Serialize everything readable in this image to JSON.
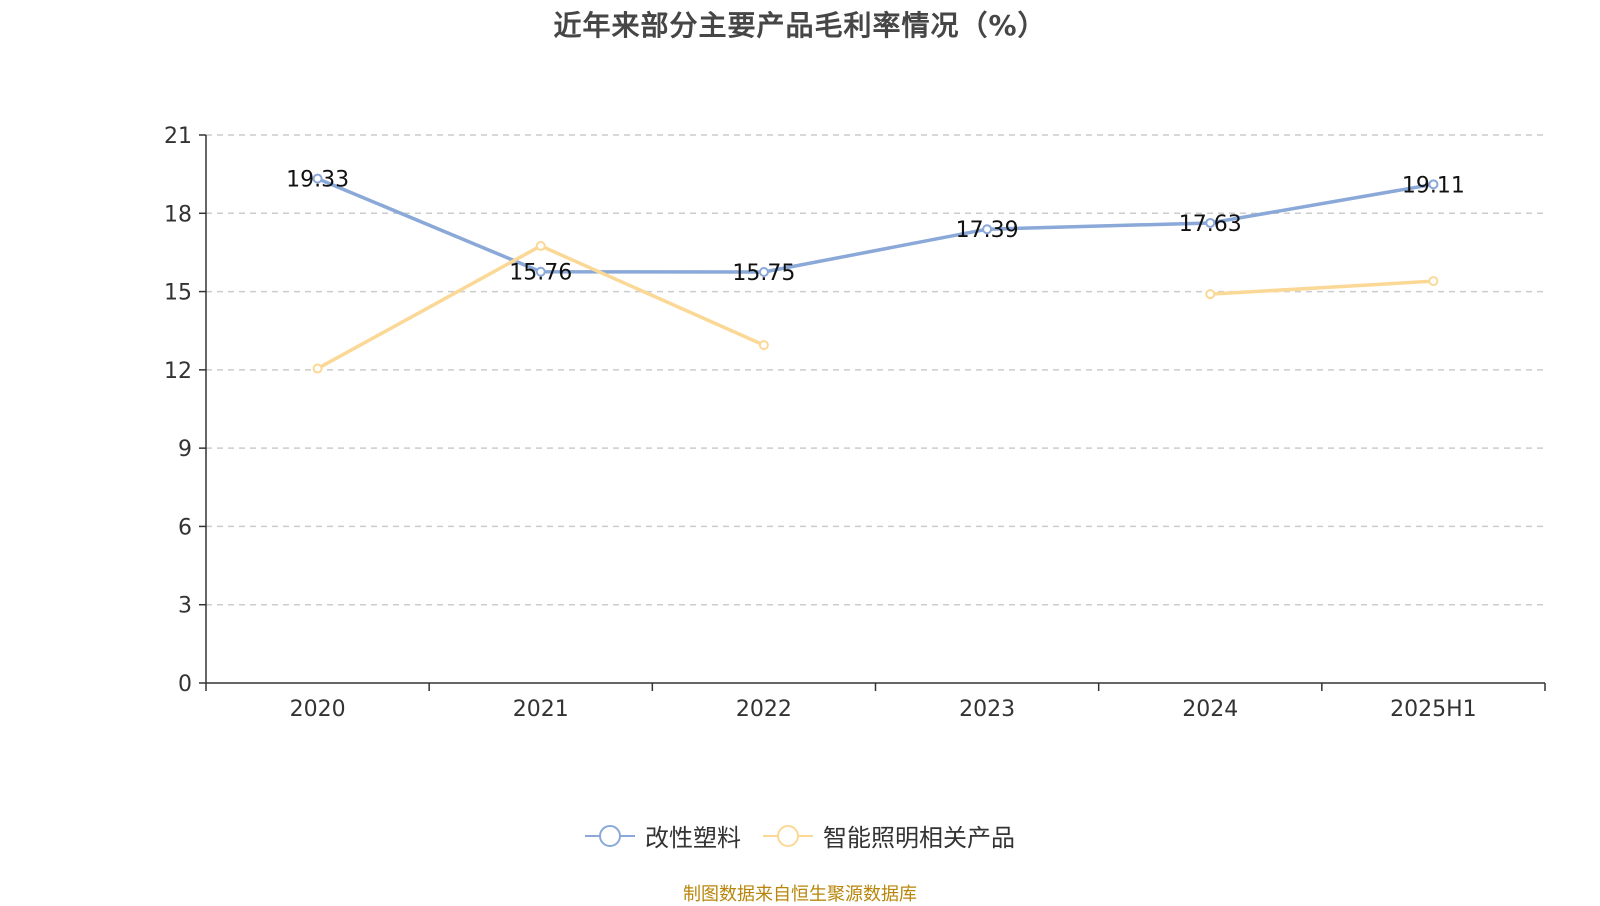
{
  "title": "近年来部分主要产品毛利率情况（%）",
  "source": "制图数据来自恒生聚源数据库",
  "chart_data": {
    "type": "line",
    "title": "近年来部分主要产品毛利率情况（%）",
    "categories": [
      "2020",
      "2021",
      "2022",
      "2023",
      "2024",
      "2025H1"
    ],
    "ylim": [
      0,
      21
    ],
    "yticks": [
      0,
      3,
      6,
      9,
      12,
      15,
      18,
      21
    ],
    "grid": true,
    "legend_position": "bottom",
    "series": [
      {
        "name": "改性塑料",
        "color": "#8aa8d8",
        "values": [
          19.33,
          15.76,
          15.75,
          17.39,
          17.63,
          19.11
        ],
        "show_labels": true
      },
      {
        "name": "智能照明相关产品",
        "color": "#fbd896",
        "values": [
          12.05,
          16.75,
          12.95,
          null,
          14.9,
          15.4
        ],
        "show_labels": false
      }
    ]
  }
}
